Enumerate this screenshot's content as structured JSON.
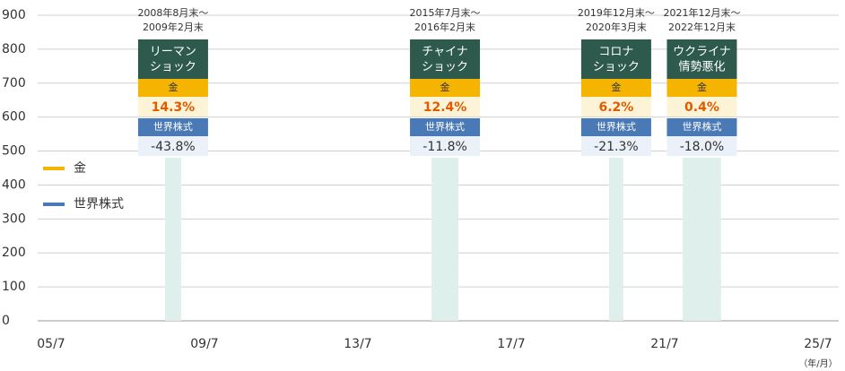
{
  "chart_data": {
    "type": "line",
    "xlabel": "（年/月）",
    "xlim": [
      2005.5,
      2025.5
    ],
    "xticks": [
      {
        "value": 2005.5,
        "label": "05/7"
      },
      {
        "value": 2009.5,
        "label": "09/7"
      },
      {
        "value": 2013.5,
        "label": "13/7"
      },
      {
        "value": 2017.5,
        "label": "17/7"
      },
      {
        "value": 2021.5,
        "label": "21/7"
      },
      {
        "value": 2025.5,
        "label": "25/7"
      }
    ],
    "ylim": [
      0,
      900
    ],
    "yticks": [
      0,
      100,
      200,
      300,
      400,
      500,
      600,
      700,
      800,
      900
    ],
    "grid": true,
    "series": [
      {
        "name": "金",
        "color": "#f5b400"
      },
      {
        "name": "世界株式",
        "color": "#4a7ab5"
      }
    ],
    "events": [
      {
        "period": [
          "2008年8月末～",
          "2009年2月末"
        ],
        "name": [
          "リーマン",
          "ショック"
        ],
        "x": [
          2008.47,
          2008.89
        ],
        "values": [
          14.3,
          -43.8
        ],
        "value_labels": [
          "14.3%",
          "-43.8%"
        ]
      },
      {
        "period": [
          "2015年7月末～",
          "2016年2月末"
        ],
        "name": [
          "チャイナ",
          "ショック"
        ],
        "x": [
          2015.42,
          2016.12
        ],
        "values": [
          12.4,
          -11.8
        ],
        "value_labels": [
          "12.4%",
          "-11.8%"
        ]
      },
      {
        "period": [
          "2019年12月末～",
          "2020年3月末"
        ],
        "name": [
          "コロナ",
          "ショック"
        ],
        "x": [
          2020.05,
          2020.42
        ],
        "values": [
          6.2,
          -21.3
        ],
        "value_labels": [
          "6.2%",
          "-21.3%"
        ]
      },
      {
        "period": [
          "2021年12月末～",
          "2022年12月末"
        ],
        "name": [
          "ウクライナ",
          "情勢悪化"
        ],
        "x": [
          2021.97,
          2022.97
        ],
        "values": [
          0.4,
          -18.0
        ],
        "value_labels": [
          "0.4%",
          "-18.0%"
        ]
      }
    ]
  }
}
